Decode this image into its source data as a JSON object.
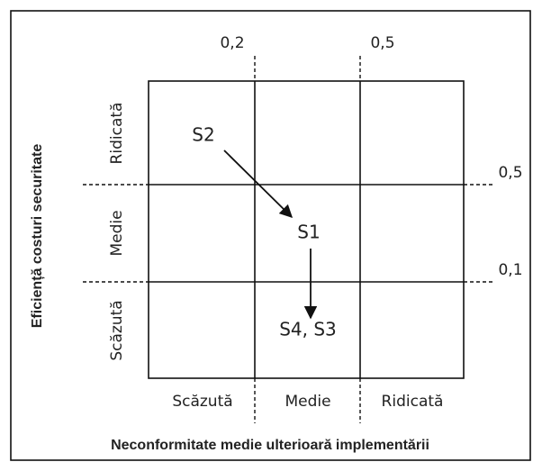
{
  "x_axis": {
    "title": "Neconformitate medie ulterioară implementării",
    "levels": [
      "Scăzută",
      "Medie",
      "Ridicată"
    ],
    "thresholds": [
      "0,2",
      "0,5"
    ]
  },
  "y_axis": {
    "title": "Eficiență costuri securitate",
    "levels": [
      "Scăzută",
      "Medie",
      "Ridicată"
    ],
    "thresholds": [
      "0,1",
      "0,5"
    ]
  },
  "nodes": [
    {
      "label": "S2"
    },
    {
      "label": "S1"
    },
    {
      "label": "S4, S3"
    }
  ]
}
